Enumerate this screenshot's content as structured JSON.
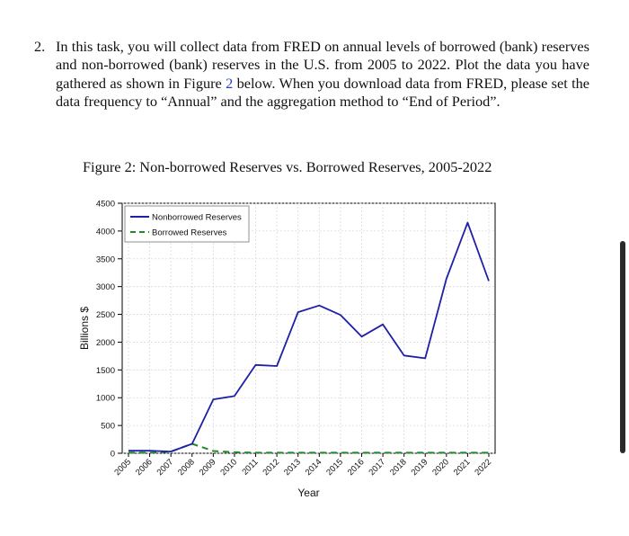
{
  "task": {
    "number": "2.",
    "text_before_ref": "In this task, you will collect data from FRED on annual levels of borrowed (bank) reserves and non-borrowed (bank) reserves in the U.S. from 2005 to 2022. Plot the data you have gathered as shown in Figure ",
    "figure_ref": "2",
    "text_after_ref": " below. When you download data from FRED, please set the data frequency to “Annual” and the aggregation method to “End of Period”."
  },
  "figure": {
    "caption": "Figure 2: Non-borrowed Reserves vs. Borrowed Reserves, 2005-2022"
  },
  "chart_data": {
    "type": "line",
    "title": "",
    "xlabel": "Year",
    "ylabel": "Billions $",
    "x": [
      "2005",
      "2006",
      "2007",
      "2008",
      "2009",
      "2010",
      "2011",
      "2012",
      "2013",
      "2014",
      "2015",
      "2016",
      "2017",
      "2018",
      "2019",
      "2020",
      "2021",
      "2022"
    ],
    "ylim": [
      0,
      4500
    ],
    "yticks": [
      0,
      500,
      1000,
      1500,
      2000,
      2500,
      3000,
      3500,
      4000,
      4500
    ],
    "grid": true,
    "legend_position": "top-left",
    "series": [
      {
        "name": "Nonborrowed Reserves",
        "color": "#1f1fa8",
        "style": "solid",
        "values": [
          45,
          45,
          30,
          170,
          970,
          1030,
          1590,
          1570,
          2540,
          2660,
          2490,
          2100,
          2320,
          1760,
          1710,
          3140,
          4150,
          3100
        ]
      },
      {
        "name": "Borrowed Reserves",
        "color": "#1f8a2a",
        "style": "dashed",
        "values": [
          10,
          10,
          30,
          170,
          40,
          20,
          10,
          10,
          10,
          10,
          10,
          10,
          10,
          10,
          10,
          10,
          10,
          10
        ]
      }
    ]
  },
  "colors": {
    "figure_ref_link": "#2a3fbf",
    "scrollbar": "#2b2b2b"
  }
}
